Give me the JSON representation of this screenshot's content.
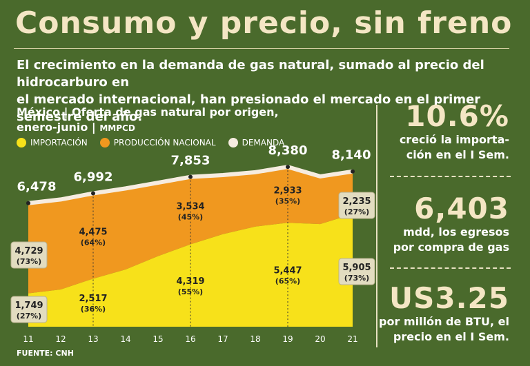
{
  "header": {
    "title": "Consumo y precio, sin freno",
    "subtitle_line1": "El crecimiento en la demanda de gas natural, sumado al precio del hidrocarburo en",
    "subtitle_line2": "el mercado internacional, han presionado el mercado en el primer semestre del año."
  },
  "chart_data": {
    "type": "area",
    "title_line1": "México | Oferta de gas natural por origen,",
    "title_line2": "enero-junio |",
    "units": "MMPCD",
    "x": [
      "11",
      "12",
      "13",
      "14",
      "15",
      "16",
      "17",
      "18",
      "19",
      "20",
      "21"
    ],
    "series": [
      {
        "name": "IMPORTACIÓN",
        "values": [
          1749,
          1950,
          2517,
          3000,
          3700,
          4319,
          4850,
          5250,
          5447,
          5380,
          5905
        ]
      },
      {
        "name": "PRODUCCIÓN NACIONAL",
        "values": [
          4729,
          4720,
          4475,
          4250,
          3850,
          3534,
          3100,
          2850,
          2933,
          2500,
          2235
        ]
      },
      {
        "name": "DEMANDA",
        "values": [
          6478,
          6670,
          6992,
          7250,
          7550,
          7853,
          7950,
          8100,
          8380,
          7880,
          8140
        ]
      }
    ],
    "ylim": [
      0,
      8600
    ],
    "demand_labels": [
      {
        "index": 0,
        "text": "6,478"
      },
      {
        "index": 2,
        "text": "6,992"
      },
      {
        "index": 5,
        "text": "7,853"
      },
      {
        "index": 8,
        "text": "8,380"
      },
      {
        "index": 10,
        "text": "8,140"
      }
    ],
    "import_labels": [
      {
        "index": 0,
        "value": "1,749",
        "pct": "(27%)",
        "boxed": true
      },
      {
        "index": 2,
        "value": "2,517",
        "pct": "(36%)",
        "boxed": false
      },
      {
        "index": 5,
        "value": "4,319",
        "pct": "(55%)",
        "boxed": false
      },
      {
        "index": 8,
        "value": "5,447",
        "pct": "(65%)",
        "boxed": false
      },
      {
        "index": 10,
        "value": "5,905",
        "pct": "(73%)",
        "boxed": true
      }
    ],
    "production_labels": [
      {
        "index": 0,
        "value": "4,729",
        "pct": "(73%)",
        "boxed": true
      },
      {
        "index": 2,
        "value": "4,475",
        "pct": "(64%)",
        "boxed": false
      },
      {
        "index": 5,
        "value": "3,534",
        "pct": "(45%)",
        "boxed": false
      },
      {
        "index": 8,
        "value": "2,933",
        "pct": "(35%)",
        "boxed": false
      },
      {
        "index": 10,
        "value": "2,235",
        "pct": "(27%)",
        "boxed": true
      }
    ],
    "source": "FUENTE: CNH"
  },
  "stats": [
    {
      "value": "10.6%",
      "caption1": "creció la importa-",
      "caption2": "ción en el I Sem."
    },
    {
      "value": "6,403",
      "caption1": "mdd, los egresos",
      "caption2": "por compra de gas"
    },
    {
      "value": "US3.25",
      "caption1": "por millón de BTU, el",
      "caption2": "precio en el I Sem."
    }
  ],
  "colors": {
    "background": "#4a6a2c",
    "import": "#f7e11a",
    "production": "#f0981f",
    "demand": "#f6ece0"
  }
}
